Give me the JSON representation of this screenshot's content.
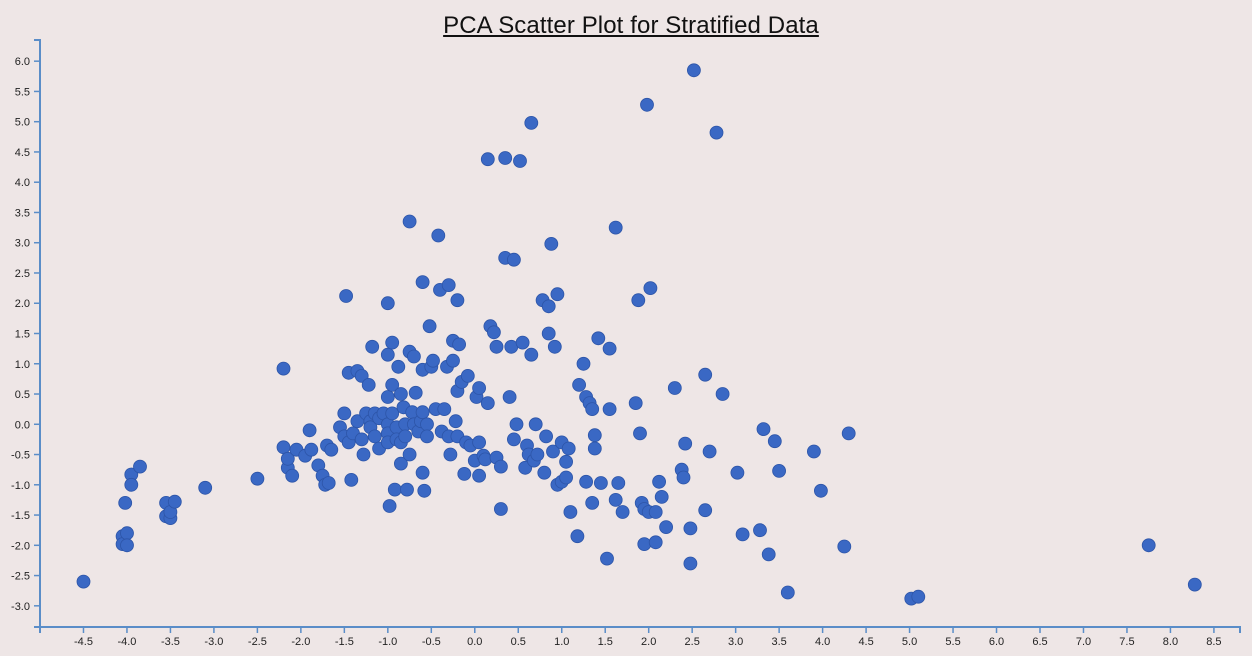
{
  "chart_data": {
    "type": "scatter",
    "title": "PCA Scatter Plot for Stratified Data",
    "xlabel": "",
    "ylabel": "",
    "xlim": [
      -5.0,
      8.8
    ],
    "ylim": [
      -3.35,
      6.35
    ],
    "x_ticks": [
      "-4.5",
      "-4.0",
      "-3.5",
      "-3.0",
      "-2.5",
      "-2.0",
      "-1.5",
      "-1.0",
      "-0.5",
      "0.0",
      "0.5",
      "1.0",
      "1.5",
      "2.0",
      "2.5",
      "3.0",
      "3.5",
      "4.0",
      "4.5",
      "5.0",
      "5.5",
      "6.0",
      "6.5",
      "7.0",
      "7.5",
      "8.0",
      "8.5"
    ],
    "y_ticks": [
      "-3.0",
      "-2.5",
      "-2.0",
      "-1.5",
      "-1.0",
      "-0.5",
      "0.0",
      "0.5",
      "1.0",
      "1.5",
      "2.0",
      "2.5",
      "3.0",
      "3.5",
      "4.0",
      "4.5",
      "5.0",
      "5.5",
      "6.0"
    ],
    "grid": false,
    "colors": {
      "point": "#3a68c4",
      "point_stroke": "#2d55a8",
      "axis": "#5a8dc8",
      "background": "#eee6e6"
    },
    "points": [
      [
        -4.5,
        -2.6
      ],
      [
        -4.05,
        -1.85
      ],
      [
        -4.05,
        -1.98
      ],
      [
        -4.0,
        -1.8
      ],
      [
        -4.0,
        -2.0
      ],
      [
        -4.02,
        -1.3
      ],
      [
        -3.95,
        -0.83
      ],
      [
        -3.95,
        -1.0
      ],
      [
        -3.85,
        -0.7
      ],
      [
        -3.55,
        -1.3
      ],
      [
        -3.55,
        -1.52
      ],
      [
        -3.5,
        -1.55
      ],
      [
        -3.5,
        -1.45
      ],
      [
        -3.45,
        -1.28
      ],
      [
        -3.1,
        -1.05
      ],
      [
        -2.5,
        -0.9
      ],
      [
        -2.2,
        0.92
      ],
      [
        -2.2,
        -0.38
      ],
      [
        -2.15,
        -0.72
      ],
      [
        -2.15,
        -0.57
      ],
      [
        -2.1,
        -0.85
      ],
      [
        -2.05,
        -0.42
      ],
      [
        -1.95,
        -0.52
      ],
      [
        -1.9,
        -0.1
      ],
      [
        -1.88,
        -0.42
      ],
      [
        -1.8,
        -0.68
      ],
      [
        -1.75,
        -0.85
      ],
      [
        -1.72,
        -1.0
      ],
      [
        -1.7,
        -0.35
      ],
      [
        -1.68,
        -0.97
      ],
      [
        -1.65,
        -0.42
      ],
      [
        -1.55,
        -0.05
      ],
      [
        -1.5,
        0.18
      ],
      [
        -1.5,
        -0.2
      ],
      [
        -1.48,
        2.12
      ],
      [
        -1.45,
        0.85
      ],
      [
        -1.45,
        -0.3
      ],
      [
        -1.42,
        -0.92
      ],
      [
        -1.4,
        -0.15
      ],
      [
        -1.35,
        0.88
      ],
      [
        -1.35,
        0.05
      ],
      [
        -1.3,
        0.8
      ],
      [
        -1.3,
        -0.25
      ],
      [
        -1.28,
        -0.5
      ],
      [
        -1.25,
        0.18
      ],
      [
        -1.22,
        0.65
      ],
      [
        -1.2,
        0.05
      ],
      [
        -1.2,
        -0.05
      ],
      [
        -1.18,
        1.28
      ],
      [
        -1.15,
        0.18
      ],
      [
        -1.15,
        -0.2
      ],
      [
        -1.1,
        -0.4
      ],
      [
        -1.1,
        0.1
      ],
      [
        -1.05,
        0.18
      ],
      [
        -1.0,
        2.0
      ],
      [
        -1.0,
        0.45
      ],
      [
        -1.0,
        0.0
      ],
      [
        -1.0,
        -0.15
      ],
      [
        -1.0,
        -0.3
      ],
      [
        -1.0,
        1.15
      ],
      [
        -0.98,
        -1.35
      ],
      [
        -0.95,
        0.65
      ],
      [
        -0.95,
        1.35
      ],
      [
        -0.95,
        0.18
      ],
      [
        -0.92,
        -1.08
      ],
      [
        -0.9,
        -0.05
      ],
      [
        -0.9,
        -0.25
      ],
      [
        -0.88,
        0.95
      ],
      [
        -0.85,
        0.5
      ],
      [
        -0.85,
        -0.65
      ],
      [
        -0.85,
        -0.3
      ],
      [
        -0.82,
        0.28
      ],
      [
        -0.8,
        0.0
      ],
      [
        -0.8,
        -0.2
      ],
      [
        -0.78,
        -1.08
      ],
      [
        -0.75,
        3.35
      ],
      [
        -0.75,
        1.2
      ],
      [
        -0.75,
        -0.5
      ],
      [
        -0.72,
        0.2
      ],
      [
        -0.7,
        1.12
      ],
      [
        -0.7,
        0.0
      ],
      [
        -0.68,
        0.52
      ],
      [
        -0.65,
        -0.12
      ],
      [
        -0.62,
        0.05
      ],
      [
        -0.6,
        0.2
      ],
      [
        -0.6,
        2.35
      ],
      [
        -0.6,
        0.9
      ],
      [
        -0.6,
        -0.8
      ],
      [
        -0.58,
        -1.1
      ],
      [
        -0.55,
        0.0
      ],
      [
        -0.55,
        -0.2
      ],
      [
        -0.52,
        1.62
      ],
      [
        -0.5,
        0.95
      ],
      [
        -0.48,
        1.05
      ],
      [
        -0.45,
        0.25
      ],
      [
        -0.42,
        3.12
      ],
      [
        -0.4,
        2.22
      ],
      [
        -0.38,
        -0.12
      ],
      [
        -0.35,
        0.25
      ],
      [
        -0.32,
        0.95
      ],
      [
        -0.3,
        2.3
      ],
      [
        -0.3,
        -0.2
      ],
      [
        -0.28,
        -0.5
      ],
      [
        -0.25,
        1.05
      ],
      [
        -0.25,
        1.38
      ],
      [
        -0.22,
        0.05
      ],
      [
        -0.2,
        2.05
      ],
      [
        -0.2,
        -0.2
      ],
      [
        -0.2,
        0.55
      ],
      [
        -0.18,
        1.32
      ],
      [
        -0.15,
        0.7
      ],
      [
        -0.12,
        -0.82
      ],
      [
        -0.1,
        -0.3
      ],
      [
        -0.08,
        0.8
      ],
      [
        -0.05,
        -0.35
      ],
      [
        0.0,
        -0.6
      ],
      [
        0.02,
        0.45
      ],
      [
        0.05,
        0.6
      ],
      [
        0.05,
        -0.85
      ],
      [
        0.05,
        -0.3
      ],
      [
        0.1,
        -0.52
      ],
      [
        0.12,
        -0.58
      ],
      [
        0.15,
        4.38
      ],
      [
        0.15,
        0.35
      ],
      [
        0.18,
        1.62
      ],
      [
        0.22,
        1.52
      ],
      [
        0.25,
        1.28
      ],
      [
        0.25,
        -0.55
      ],
      [
        0.3,
        -1.4
      ],
      [
        0.3,
        -0.7
      ],
      [
        0.35,
        4.4
      ],
      [
        0.35,
        2.75
      ],
      [
        0.4,
        0.45
      ],
      [
        0.42,
        1.28
      ],
      [
        0.45,
        -0.25
      ],
      [
        0.45,
        2.72
      ],
      [
        0.48,
        0.0
      ],
      [
        0.52,
        4.35
      ],
      [
        0.55,
        1.35
      ],
      [
        0.58,
        -0.72
      ],
      [
        0.6,
        -0.35
      ],
      [
        0.62,
        -0.5
      ],
      [
        0.65,
        4.98
      ],
      [
        0.65,
        1.15
      ],
      [
        0.68,
        -0.6
      ],
      [
        0.7,
        0.0
      ],
      [
        0.72,
        -0.5
      ],
      [
        0.78,
        2.05
      ],
      [
        0.8,
        -0.8
      ],
      [
        0.82,
        -0.2
      ],
      [
        0.85,
        1.5
      ],
      [
        0.85,
        1.95
      ],
      [
        0.88,
        2.98
      ],
      [
        0.9,
        -0.45
      ],
      [
        0.92,
        1.28
      ],
      [
        0.95,
        2.15
      ],
      [
        0.95,
        -1.0
      ],
      [
        1.0,
        -0.95
      ],
      [
        1.0,
        -0.3
      ],
      [
        1.05,
        -0.62
      ],
      [
        1.05,
        -0.88
      ],
      [
        1.08,
        -0.4
      ],
      [
        1.1,
        -1.45
      ],
      [
        1.18,
        -1.85
      ],
      [
        1.2,
        0.65
      ],
      [
        1.25,
        1.0
      ],
      [
        1.28,
        0.45
      ],
      [
        1.28,
        -0.95
      ],
      [
        1.32,
        0.35
      ],
      [
        1.35,
        -1.3
      ],
      [
        1.35,
        0.25
      ],
      [
        1.38,
        -0.4
      ],
      [
        1.38,
        -0.18
      ],
      [
        1.42,
        1.42
      ],
      [
        1.45,
        -0.97
      ],
      [
        1.52,
        -2.22
      ],
      [
        1.55,
        1.25
      ],
      [
        1.55,
        0.25
      ],
      [
        1.62,
        3.25
      ],
      [
        1.62,
        -1.25
      ],
      [
        1.65,
        -0.97
      ],
      [
        1.7,
        -1.45
      ],
      [
        1.85,
        0.35
      ],
      [
        1.88,
        2.05
      ],
      [
        1.9,
        -0.15
      ],
      [
        1.92,
        -1.3
      ],
      [
        1.95,
        -1.4
      ],
      [
        1.95,
        -1.98
      ],
      [
        1.98,
        5.28
      ],
      [
        2.0,
        -1.45
      ],
      [
        2.02,
        2.25
      ],
      [
        2.08,
        -1.45
      ],
      [
        2.08,
        -1.95
      ],
      [
        2.12,
        -0.95
      ],
      [
        2.15,
        -1.2
      ],
      [
        2.2,
        -1.7
      ],
      [
        2.3,
        0.6
      ],
      [
        2.38,
        -0.75
      ],
      [
        2.4,
        -0.88
      ],
      [
        2.42,
        -0.32
      ],
      [
        2.48,
        -1.72
      ],
      [
        2.48,
        -2.3
      ],
      [
        2.52,
        5.85
      ],
      [
        2.65,
        0.82
      ],
      [
        2.65,
        -1.42
      ],
      [
        2.7,
        -0.45
      ],
      [
        2.78,
        4.82
      ],
      [
        2.85,
        0.5
      ],
      [
        3.02,
        -0.8
      ],
      [
        3.08,
        -1.82
      ],
      [
        3.28,
        -1.75
      ],
      [
        3.32,
        -0.08
      ],
      [
        3.38,
        -2.15
      ],
      [
        3.45,
        -0.28
      ],
      [
        3.5,
        -0.77
      ],
      [
        3.6,
        -2.78
      ],
      [
        3.9,
        -0.45
      ],
      [
        3.98,
        -1.1
      ],
      [
        4.25,
        -2.02
      ],
      [
        4.3,
        -0.15
      ],
      [
        5.02,
        -2.88
      ],
      [
        5.1,
        -2.85
      ],
      [
        7.75,
        -2.0
      ],
      [
        8.28,
        -2.65
      ]
    ]
  }
}
